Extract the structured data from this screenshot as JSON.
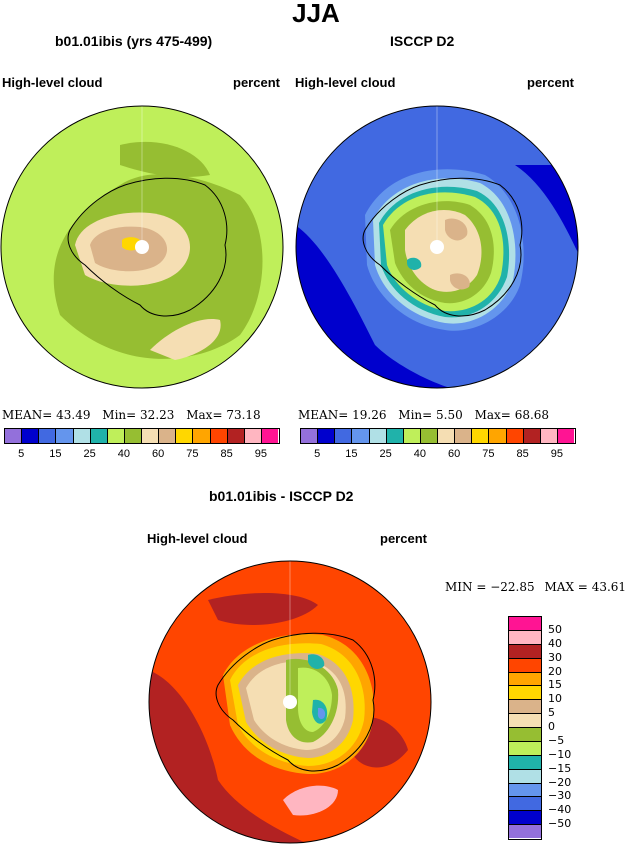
{
  "title": "JJA",
  "panels": {
    "left": {
      "title": "b01.01ibis (yrs 475-499)",
      "field": "High-level cloud",
      "units": "percent",
      "stats": {
        "mean_label": "MEAN=",
        "mean": "43.49",
        "min_label": "Min=",
        "min": "32.23",
        "max_label": "Max=",
        "max": "73.18"
      }
    },
    "right": {
      "title": "ISCCP D2",
      "field": "High-level cloud",
      "units": "percent",
      "stats": {
        "mean_label": "MEAN=",
        "mean": "19.26",
        "min_label": "Min=",
        "min": "5.50",
        "max_label": "Max=",
        "max": "68.68"
      }
    },
    "diff": {
      "title": "b01.01ibis - ISCCP D2",
      "field": "High-level cloud",
      "units": "percent",
      "stats": {
        "min_label": "MIN =",
        "min": "−22.85",
        "max_label": "MAX =",
        "max": "43.61"
      }
    }
  },
  "colorbar_top": {
    "colors": [
      "#9370db",
      "#0000cd",
      "#4169e1",
      "#6495ed",
      "#b0e0e6",
      "#20b2aa",
      "#bfef5a",
      "#96be32",
      "#f5deb3",
      "#dab38a",
      "#ffd700",
      "#ffa500",
      "#ff4500",
      "#b22222",
      "#ffb6c1",
      "#ff1493"
    ],
    "labels": [
      "5",
      "15",
      "25",
      "40",
      "60",
      "75",
      "85",
      "95"
    ]
  },
  "colorbar_diff": {
    "colors": [
      "#ff1493",
      "#ffb6c1",
      "#b22222",
      "#ff4500",
      "#ffa500",
      "#ffd700",
      "#dab38a",
      "#f5deb3",
      "#96be32",
      "#bfef5a",
      "#20b2aa",
      "#b0e0e6",
      "#6495ed",
      "#4169e1",
      "#0000cd",
      "#9370db"
    ],
    "labels": [
      "50",
      "40",
      "30",
      "20",
      "15",
      "10",
      "5",
      "0",
      "−5",
      "−10",
      "−15",
      "−20",
      "−30",
      "−40",
      "−50"
    ]
  }
}
